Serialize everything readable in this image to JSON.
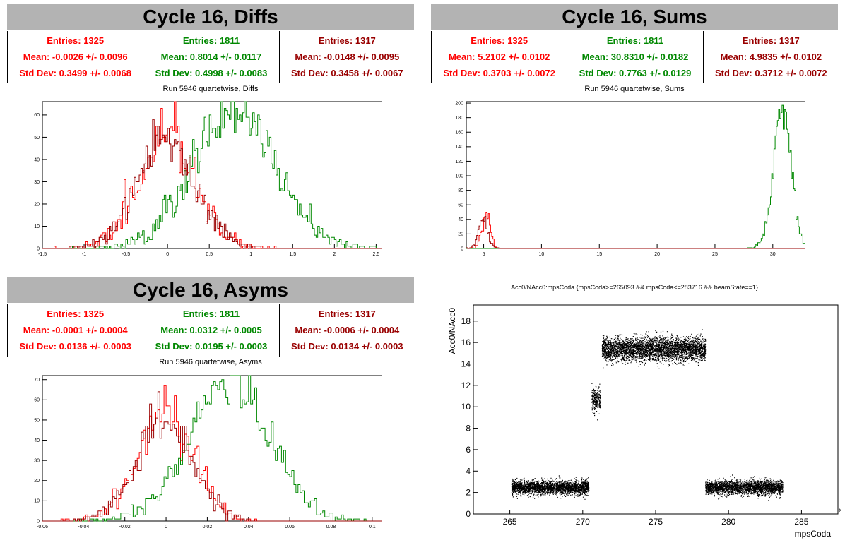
{
  "panels": {
    "diffs": {
      "title": "Cycle 16, Diffs",
      "subtitle": "Run 5946 quartetwise, Diffs",
      "stats": [
        {
          "entries": "Entries: 1325",
          "mean": "Mean: -0.0026 +/- 0.0096",
          "std": "Std Dev: 0.3499 +/- 0.0068",
          "color": "#ff0000"
        },
        {
          "entries": "Entries: 1811",
          "mean": "Mean: 0.8014 +/- 0.0117",
          "std": "Std Dev: 0.4998 +/- 0.0083",
          "color": "#008800"
        },
        {
          "entries": "Entries: 1317",
          "mean": "Mean: -0.0148 +/- 0.0095",
          "std": "Std Dev: 0.3458 +/- 0.0067",
          "color": "#990000"
        }
      ]
    },
    "sums": {
      "title": "Cycle 16, Sums",
      "subtitle": "Run 5946 quartetwise, Sums",
      "stats": [
        {
          "entries": "Entries: 1325",
          "mean": "Mean: 5.2102 +/- 0.0102",
          "std": "Std Dev: 0.3703 +/- 0.0072",
          "color": "#ff0000"
        },
        {
          "entries": "Entries: 1811",
          "mean": "Mean: 30.8310 +/- 0.0182",
          "std": "Std Dev: 0.7763 +/- 0.0129",
          "color": "#008800"
        },
        {
          "entries": "Entries: 1317",
          "mean": "Mean: 4.9835 +/- 0.0102",
          "std": "Std Dev: 0.3712 +/- 0.0072",
          "color": "#990000"
        }
      ]
    },
    "asyms": {
      "title": "Cycle 16, Asyms",
      "subtitle": "Run 5946 quartetwise, Asyms",
      "stats": [
        {
          "entries": "Entries: 1325",
          "mean": "Mean: -0.0001 +/- 0.0004",
          "std": "Std Dev: 0.0136 +/- 0.0003",
          "color": "#ff0000"
        },
        {
          "entries": "Entries: 1811",
          "mean": "Mean: 0.0312 +/- 0.0005",
          "std": "Std Dev: 0.0195 +/- 0.0003",
          "color": "#008800"
        },
        {
          "entries": "Entries: 1317",
          "mean": "Mean: -0.0006 +/- 0.0004",
          "std": "Std Dev: 0.0134 +/- 0.0003",
          "color": "#990000"
        }
      ]
    },
    "scatter": {
      "subtitle": "Acc0/NAcc0:mpsCoda {mpsCoda>=265093 && mpsCoda<=283716 && beamState==1}"
    }
  },
  "chart_data": [
    {
      "id": "diffs",
      "type": "histogram",
      "xlim": [
        -1.5,
        2.7
      ],
      "ylim": [
        0,
        66
      ],
      "xticks": [
        -1.5,
        -1,
        -0.5,
        0,
        0.5,
        1,
        1.5,
        2,
        2.5
      ],
      "xtick_labels": [
        "-1.5",
        "-1",
        "-0.5",
        "0",
        "0.5",
        "1",
        "1.5",
        "2",
        "2.5"
      ],
      "yticks": [
        0,
        10,
        20,
        30,
        40,
        50,
        60
      ],
      "ytick_labels": [
        "0",
        "10",
        "20",
        "30",
        "40",
        "50",
        "60"
      ],
      "series": [
        {
          "color": "#ff0000",
          "stat": "gauss",
          "mean": -0.0026,
          "sigma": 0.3499,
          "peak": 50,
          "bin": 0.02
        },
        {
          "color": "#008800",
          "stat": "gauss",
          "mean": 0.8014,
          "sigma": 0.4998,
          "peak": 62,
          "bin": 0.02
        },
        {
          "color": "#990000",
          "stat": "gauss",
          "mean": -0.0148,
          "sigma": 0.3458,
          "peak": 48,
          "bin": 0.02
        }
      ]
    },
    {
      "id": "sums",
      "type": "histogram",
      "xlim": [
        3.5,
        33.8
      ],
      "ylim": [
        0,
        202
      ],
      "xticks": [
        5,
        10,
        15,
        20,
        25,
        30
      ],
      "xtick_labels": [
        "5",
        "10",
        "15",
        "20",
        "25",
        "30"
      ],
      "yticks": [
        0,
        20,
        40,
        60,
        80,
        100,
        120,
        140,
        160,
        180,
        200
      ],
      "ytick_labels": [
        "0",
        "20",
        "40",
        "60",
        "80",
        "100",
        "120",
        "140",
        "160",
        "180",
        "200"
      ],
      "series": [
        {
          "color": "#ff0000",
          "stat": "gauss",
          "mean": 5.2102,
          "sigma": 0.3703,
          "peak": 48,
          "bin": 0.1
        },
        {
          "color": "#008800",
          "stat": "gauss",
          "mean": 30.831,
          "sigma": 0.7763,
          "peak": 192,
          "bin": 0.1
        },
        {
          "color": "#990000",
          "stat": "gauss",
          "mean": 4.9835,
          "sigma": 0.3712,
          "peak": 44,
          "bin": 0.1
        }
      ]
    },
    {
      "id": "asyms",
      "type": "histogram",
      "xlim": [
        -0.06,
        0.11
      ],
      "ylim": [
        0,
        72
      ],
      "xticks": [
        -0.06,
        -0.04,
        -0.02,
        0,
        0.02,
        0.04,
        0.06,
        0.08,
        0.1
      ],
      "xtick_labels": [
        "-0.06",
        "-0.04",
        "-0.02",
        "0",
        "0.02",
        "0.04",
        "0.06",
        "0.08",
        "0.1"
      ],
      "yticks": [
        0,
        10,
        20,
        30,
        40,
        50,
        60,
        70
      ],
      "ytick_labels": [
        "0",
        "10",
        "20",
        "30",
        "40",
        "50",
        "60",
        "70"
      ],
      "series": [
        {
          "color": "#ff0000",
          "stat": "gauss",
          "mean": -0.0001,
          "sigma": 0.0136,
          "peak": 52,
          "bin": 0.001
        },
        {
          "color": "#008800",
          "stat": "gauss",
          "mean": 0.0312,
          "sigma": 0.0195,
          "peak": 68,
          "bin": 0.001
        },
        {
          "color": "#990000",
          "stat": "gauss",
          "mean": -0.0006,
          "sigma": 0.0134,
          "peak": 50,
          "bin": 0.001
        }
      ]
    },
    {
      "id": "scatter",
      "type": "scatter",
      "xlabel": "mpsCoda",
      "ylabel": "Acc0/NAcc0",
      "xscale_label": "×10³",
      "xlim": [
        262.5,
        287.5
      ],
      "ylim": [
        0,
        19.5
      ],
      "xticks": [
        265,
        270,
        275,
        280,
        285
      ],
      "xtick_labels": [
        "265",
        "270",
        "275",
        "280",
        "285"
      ],
      "yticks": [
        0,
        2,
        4,
        6,
        8,
        10,
        12,
        14,
        16,
        18
      ],
      "ytick_labels": [
        "0",
        "2",
        "4",
        "6",
        "8",
        "10",
        "12",
        "14",
        "16",
        "18"
      ],
      "clusters": [
        {
          "x": [
            265.1,
            270.4
          ],
          "y_center": 2.5,
          "y_spread": 0.7,
          "n": 2600
        },
        {
          "x": [
            270.6,
            271.2
          ],
          "y_center": 10.7,
          "y_spread": 1.1,
          "n": 260
        },
        {
          "x": [
            271.3,
            278.4
          ],
          "y_center": 15.4,
          "y_spread": 1.2,
          "n": 3800
        },
        {
          "x": [
            278.4,
            283.7
          ],
          "y_center": 2.5,
          "y_spread": 0.7,
          "n": 2500
        }
      ]
    }
  ]
}
